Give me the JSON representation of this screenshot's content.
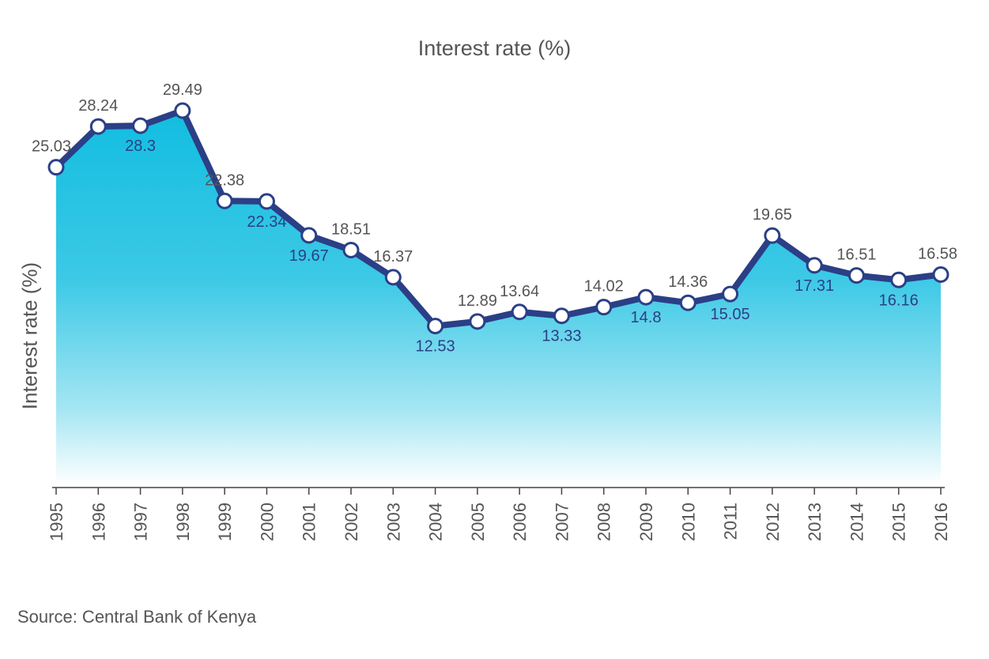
{
  "title": "Interest rate (%)",
  "source": "Source: Central Bank of Kenya",
  "colors": {
    "line": "#2b3f86",
    "fill_top": "#12bde0",
    "fill_bottom": "#ffffff",
    "label_above": "#555555",
    "label_below": "#2b3f86"
  },
  "chart_data": {
    "type": "area",
    "title": "Interest rate (%)",
    "xlabel": "",
    "ylabel": "Interest rate (%)",
    "ylim": [
      0,
      32
    ],
    "grid": false,
    "categories": [
      "1995",
      "1996",
      "1997",
      "1998",
      "1999",
      "2000",
      "2001",
      "2002",
      "2003",
      "2004",
      "2005",
      "2006",
      "2007",
      "2008",
      "2009",
      "2010",
      "2011",
      "2012",
      "2013",
      "2014",
      "2015",
      "2016"
    ],
    "series": [
      {
        "name": "Interest rate (%)",
        "values": [
          25.03,
          28.24,
          28.3,
          29.49,
          22.38,
          22.34,
          19.67,
          18.51,
          16.37,
          12.53,
          12.89,
          13.64,
          13.33,
          14.02,
          14.8,
          14.36,
          15.05,
          19.65,
          17.31,
          16.51,
          16.16,
          16.58
        ],
        "label_position": [
          "above",
          "above",
          "below",
          "above",
          "above",
          "below",
          "below",
          "above",
          "above",
          "below",
          "above",
          "above",
          "below",
          "above",
          "below",
          "above",
          "below",
          "above",
          "below",
          "above",
          "below",
          "above"
        ]
      }
    ]
  }
}
